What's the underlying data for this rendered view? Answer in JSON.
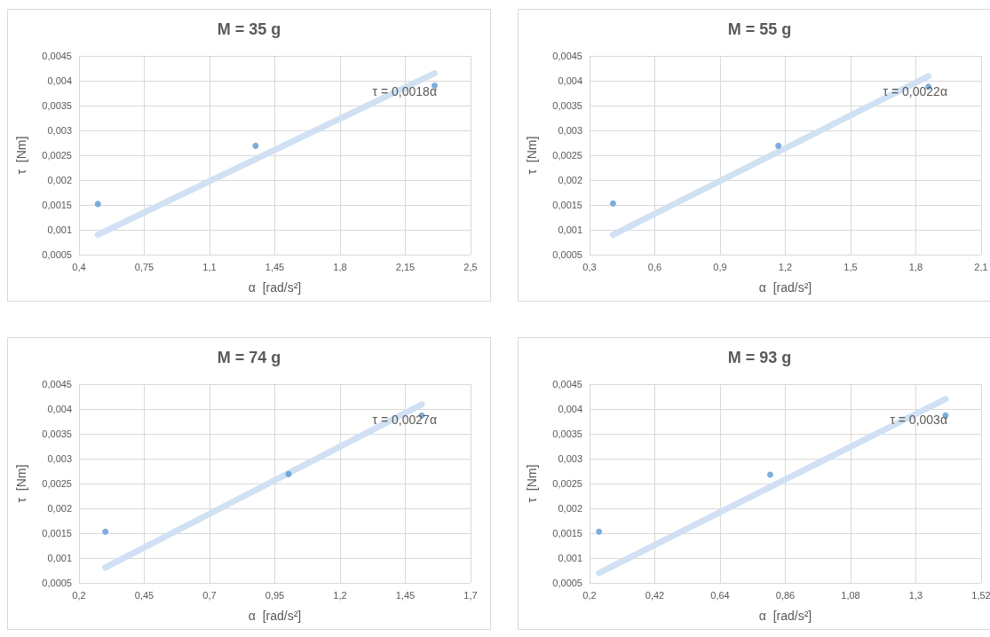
{
  "chart_data": [
    {
      "type": "scatter",
      "title": "M = 35 g",
      "xlabel": "α  [rad/s²]",
      "ylabel": "τ  [Nm]",
      "grid": true,
      "xlim": [
        0.4,
        2.5
      ],
      "xticks": [
        {
          "value": 0.4,
          "label": "0,4"
        },
        {
          "value": 0.75,
          "label": "0,75"
        },
        {
          "value": 1.1,
          "label": "1,1"
        },
        {
          "value": 1.45,
          "label": "1,45"
        },
        {
          "value": 1.8,
          "label": "1,8"
        },
        {
          "value": 2.15,
          "label": "2,15"
        },
        {
          "value": 2.5,
          "label": "2,5"
        }
      ],
      "ylim": [
        0.0005,
        0.0045
      ],
      "yticks": [
        {
          "value": 0.0005,
          "label": "0,0005"
        },
        {
          "value": 0.001,
          "label": "0,001"
        },
        {
          "value": 0.0015,
          "label": "0,0015"
        },
        {
          "value": 0.002,
          "label": "0,002"
        },
        {
          "value": 0.0025,
          "label": "0,0025"
        },
        {
          "value": 0.003,
          "label": "0,003"
        },
        {
          "value": 0.0035,
          "label": "0,0035"
        },
        {
          "value": 0.004,
          "label": "0,004"
        },
        {
          "value": 0.0045,
          "label": "0,0045"
        }
      ],
      "series": [
        {
          "marker": "circle",
          "color": "#5b9bd5",
          "x": [
            0.501,
            1.347,
            2.307
          ],
          "values": [
            0.00152,
            0.00269,
            0.0039
          ]
        },
        {
          "type": "line",
          "marker": "none",
          "color": "#cfe1f3",
          "x": [
            0.501,
            2.307
          ],
          "values": [
            0.0009,
            0.00415
          ]
        }
      ],
      "annotations": [
        "τ = 0,0018α"
      ]
    },
    {
      "type": "scatter",
      "title": "M = 55 g",
      "xlabel": "α  [rad/s²]",
      "ylabel": "τ  [Nm]",
      "grid": true,
      "xlim": [
        0.3,
        2.1
      ],
      "xticks": [
        {
          "value": 0.3,
          "label": "0,3"
        },
        {
          "value": 0.6,
          "label": "0,6"
        },
        {
          "value": 0.9,
          "label": "0,9"
        },
        {
          "value": 1.2,
          "label": "1,2"
        },
        {
          "value": 1.5,
          "label": "1,5"
        },
        {
          "value": 1.8,
          "label": "1,8"
        },
        {
          "value": 2.1,
          "label": "2,1"
        }
      ],
      "ylim": [
        0.0005,
        0.0045
      ],
      "yticks": [
        {
          "value": 0.0005,
          "label": "0,0005"
        },
        {
          "value": 0.001,
          "label": "0,001"
        },
        {
          "value": 0.0015,
          "label": "0,0015"
        },
        {
          "value": 0.002,
          "label": "0,002"
        },
        {
          "value": 0.0025,
          "label": "0,0025"
        },
        {
          "value": 0.003,
          "label": "0,003"
        },
        {
          "value": 0.0035,
          "label": "0,0035"
        },
        {
          "value": 0.004,
          "label": "0,004"
        },
        {
          "value": 0.0045,
          "label": "0,0045"
        }
      ],
      "series": [
        {
          "marker": "circle",
          "color": "#5b9bd5",
          "x": [
            0.408,
            1.168,
            1.858
          ],
          "values": [
            0.00153,
            0.00269,
            0.00388
          ]
        },
        {
          "type": "line",
          "marker": "none",
          "color": "#cfe1f3",
          "x": [
            0.408,
            1.858
          ],
          "values": [
            0.0009,
            0.00409
          ]
        }
      ],
      "annotations": [
        "τ = 0,0022α"
      ]
    },
    {
      "type": "scatter",
      "title": "M = 74 g",
      "xlabel": "α  [rad/s²]",
      "ylabel": "τ  [Nm]",
      "grid": true,
      "xlim": [
        0.2,
        1.7
      ],
      "xticks": [
        {
          "value": 0.2,
          "label": "0,2"
        },
        {
          "value": 0.45,
          "label": "0,45"
        },
        {
          "value": 0.7,
          "label": "0,7"
        },
        {
          "value": 0.95,
          "label": "0,95"
        },
        {
          "value": 1.2,
          "label": "1,2"
        },
        {
          "value": 1.45,
          "label": "1,45"
        },
        {
          "value": 1.7,
          "label": "1,7"
        }
      ],
      "ylim": [
        0.0005,
        0.0045
      ],
      "yticks": [
        {
          "value": 0.0005,
          "label": "0,0005"
        },
        {
          "value": 0.001,
          "label": "0,001"
        },
        {
          "value": 0.0015,
          "label": "0,0015"
        },
        {
          "value": 0.002,
          "label": "0,002"
        },
        {
          "value": 0.0025,
          "label": "0,0025"
        },
        {
          "value": 0.003,
          "label": "0,003"
        },
        {
          "value": 0.0035,
          "label": "0,0035"
        },
        {
          "value": 0.004,
          "label": "0,004"
        },
        {
          "value": 0.0045,
          "label": "0,0045"
        }
      ],
      "series": [
        {
          "marker": "circle",
          "color": "#5b9bd5",
          "x": [
            0.301,
            1.003,
            1.513
          ],
          "values": [
            0.00153,
            0.00269,
            0.00387
          ]
        },
        {
          "type": "line",
          "marker": "none",
          "color": "#cfe1f3",
          "x": [
            0.301,
            1.513
          ],
          "values": [
            0.00081,
            0.00409
          ]
        }
      ],
      "annotations": [
        "τ = 0,0027α"
      ]
    },
    {
      "type": "scatter",
      "title": "M = 93 g",
      "xlabel": "α  [rad/s²]",
      "ylabel": "τ  [Nm]",
      "grid": true,
      "xlim": [
        0.2,
        1.52
      ],
      "xticks": [
        {
          "value": 0.2,
          "label": "0,2"
        },
        {
          "value": 0.42,
          "label": "0,42"
        },
        {
          "value": 0.64,
          "label": "0,64"
        },
        {
          "value": 0.86,
          "label": "0,86"
        },
        {
          "value": 1.08,
          "label": "1,08"
        },
        {
          "value": 1.3,
          "label": "1,3"
        },
        {
          "value": 1.52,
          "label": "1,52"
        }
      ],
      "ylim": [
        0.0005,
        0.0045
      ],
      "yticks": [
        {
          "value": 0.0005,
          "label": "0,0005"
        },
        {
          "value": 0.001,
          "label": "0,001"
        },
        {
          "value": 0.0015,
          "label": "0,0015"
        },
        {
          "value": 0.002,
          "label": "0,002"
        },
        {
          "value": 0.0025,
          "label": "0,0025"
        },
        {
          "value": 0.003,
          "label": "0,003"
        },
        {
          "value": 0.0035,
          "label": "0,0035"
        },
        {
          "value": 0.004,
          "label": "0,004"
        },
        {
          "value": 0.0045,
          "label": "0,0045"
        }
      ],
      "series": [
        {
          "marker": "circle",
          "color": "#5b9bd5",
          "x": [
            0.232,
            0.809,
            1.4
          ],
          "values": [
            0.00153,
            0.00268,
            0.00387
          ]
        },
        {
          "type": "line",
          "marker": "none",
          "color": "#cfe1f3",
          "x": [
            0.232,
            1.4
          ],
          "values": [
            0.0007,
            0.0042
          ]
        }
      ],
      "annotations": [
        "τ = 0,003α"
      ]
    }
  ]
}
